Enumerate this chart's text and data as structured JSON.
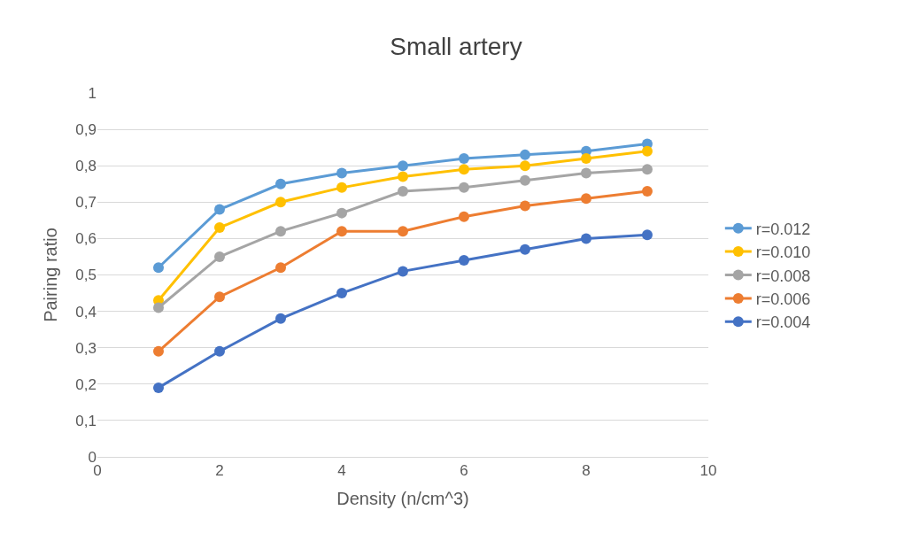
{
  "chart_data": {
    "type": "line",
    "title": "Small artery",
    "xlabel": "Density (n/cm^3)",
    "ylabel": "Pairing ratio",
    "x": [
      1,
      2,
      3,
      4,
      5,
      6,
      7,
      8,
      9
    ],
    "series": [
      {
        "name": "r=0.012",
        "color": "#5b9bd5",
        "values": [
          0.52,
          0.68,
          0.75,
          0.78,
          0.8,
          0.82,
          0.83,
          0.84,
          0.86
        ]
      },
      {
        "name": "r=0.010",
        "color": "#ffc000",
        "values": [
          0.43,
          0.63,
          0.7,
          0.74,
          0.77,
          0.79,
          0.8,
          0.82,
          0.84
        ]
      },
      {
        "name": "r=0.008",
        "color": "#a5a5a5",
        "values": [
          0.41,
          0.55,
          0.62,
          0.67,
          0.73,
          0.74,
          0.76,
          0.78,
          0.79
        ]
      },
      {
        "name": "r=0.006",
        "color": "#ed7d31",
        "values": [
          0.29,
          0.44,
          0.52,
          0.62,
          0.62,
          0.66,
          0.69,
          0.71,
          0.73
        ]
      },
      {
        "name": "r=0.004",
        "color": "#4472c4",
        "values": [
          0.19,
          0.29,
          0.38,
          0.45,
          0.51,
          0.54,
          0.57,
          0.6,
          0.61
        ]
      }
    ],
    "xlim": [
      0,
      10
    ],
    "xticks": [
      0,
      2,
      4,
      6,
      8,
      10
    ],
    "ylim": [
      0,
      1
    ],
    "yticks": [
      0,
      {
        "value": 0.1,
        "label": "0,1"
      },
      {
        "value": 0.2,
        "label": "0,2"
      },
      {
        "value": 0.3,
        "label": "0,3"
      },
      {
        "value": 0.4,
        "label": "0,4"
      },
      {
        "value": 0.5,
        "label": "0,5"
      },
      {
        "value": 0.6,
        "label": "0,6"
      },
      {
        "value": 0.7,
        "label": "0,7"
      },
      {
        "value": 0.8,
        "label": "0,8"
      },
      {
        "value": 0.9,
        "label": "0,9"
      },
      1
    ],
    "grid": "y",
    "legend": "right",
    "marker": "circle",
    "line_style": "solid"
  }
}
